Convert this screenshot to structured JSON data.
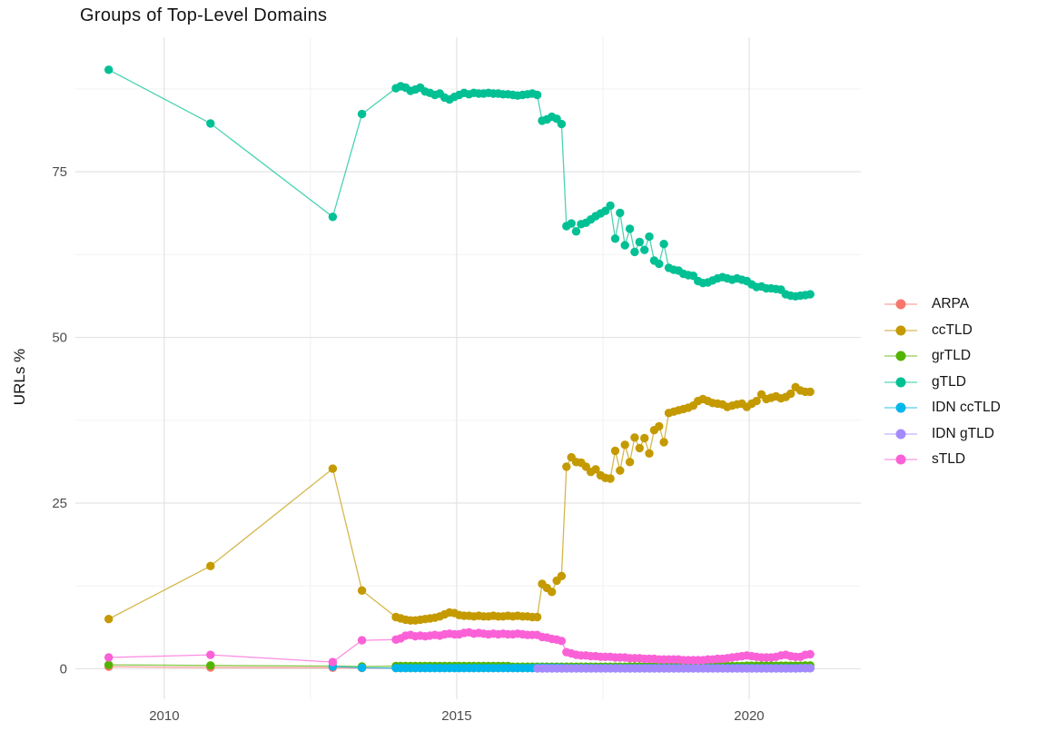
{
  "chart_data": {
    "type": "line",
    "title": "Groups of Top-Level Domains",
    "xlabel": "",
    "ylabel": "URLs %",
    "xlim": [
      2008.48,
      2021.91
    ],
    "ylim": [
      -4.6,
      95.3
    ],
    "grid": "major+minor",
    "legend_position": "right",
    "background_color": "#ffffff",
    "grid_major_color": "#e3e3e3",
    "grid_minor_color": "#f0f0f0",
    "tick_text_color": "#4d4d4d",
    "x_ticks": [
      {
        "value": 2010,
        "label": "2010"
      },
      {
        "value": 2015,
        "label": "2015"
      },
      {
        "value": 2020,
        "label": "2020"
      }
    ],
    "x_minor_ticks": [
      2012.5,
      2017.5
    ],
    "y_ticks": [
      {
        "value": 0,
        "label": "0"
      },
      {
        "value": 25,
        "label": "25"
      },
      {
        "value": 50,
        "label": "50"
      },
      {
        "value": 75,
        "label": "75"
      }
    ],
    "y_minor_ticks": [
      12.5,
      37.5,
      62.5,
      87.5
    ],
    "series": [
      {
        "name": "ARPA",
        "color": "#F8766D",
        "points": [
          [
            2009.05,
            0.3
          ],
          [
            2010.79,
            0.2
          ],
          [
            2012.88,
            0.15
          ],
          [
            2013.38,
            0.12
          ]
        ],
        "monthly": {
          "start": 2013.96,
          "step": 0.08333,
          "values": [
            0.12,
            0.12,
            0.12,
            0.12,
            0.12,
            0.12,
            0.12,
            0.12,
            0.12,
            0.12,
            0.12,
            0.12,
            0.12,
            0.12,
            0.12,
            0.12,
            0.12,
            0.12,
            0.12,
            0.12,
            0.12,
            0.12,
            0.12,
            0.12,
            0.1,
            0.1,
            0.1,
            0.1,
            0.1,
            0.1,
            0.1,
            0.1,
            0.1,
            0.1,
            0.1,
            0.1,
            0.1,
            0.1,
            0.1,
            0.1,
            0.1,
            0.1,
            0.1,
            0.1,
            0.1,
            0.1,
            0.1,
            0.1,
            0.08,
            0.08,
            0.08,
            0.08,
            0.08,
            0.08,
            0.08,
            0.08,
            0.08,
            0.08,
            0.08,
            0.08,
            0.08,
            0.08,
            0.08,
            0.08,
            0.08,
            0.08,
            0.08,
            0.08,
            0.08,
            0.08,
            0.08,
            0.08,
            0.08,
            0.08,
            0.08,
            0.08,
            0.08,
            0.08,
            0.08,
            0.08,
            0.08,
            0.08,
            0.08,
            0.08,
            0.08,
            0.08
          ]
        }
      },
      {
        "name": "ccTLD",
        "color": "#C49A00",
        "points": [
          [
            2009.05,
            7.5
          ],
          [
            2010.79,
            15.5
          ],
          [
            2012.88,
            30.2
          ],
          [
            2013.38,
            11.8
          ]
        ],
        "monthly": {
          "start": 2013.96,
          "step": 0.08333,
          "values": [
            7.8,
            7.6,
            7.4,
            7.3,
            7.3,
            7.4,
            7.5,
            7.6,
            7.7,
            7.9,
            8.2,
            8.5,
            8.4,
            8.1,
            8.0,
            8.0,
            7.9,
            8.0,
            7.9,
            7.9,
            8.0,
            7.9,
            7.9,
            8.0,
            7.9,
            8.0,
            7.9,
            7.9,
            7.8,
            7.8,
            12.8,
            12.2,
            11.6,
            13.3,
            14.0,
            30.5,
            31.9,
            31.2,
            31.1,
            30.5,
            29.7,
            30.1,
            29.2,
            28.8,
            28.7,
            32.9,
            29.9,
            33.8,
            31.2,
            34.9,
            33.3,
            34.8,
            32.5,
            36.0,
            36.6,
            34.2,
            38.6,
            38.8,
            39.0,
            39.2,
            39.4,
            39.7,
            40.4,
            40.7,
            40.4,
            40.1,
            40.0,
            39.9,
            39.5,
            39.7,
            39.9,
            40.0,
            39.5,
            40.0,
            40.4,
            41.4,
            40.7,
            40.9,
            41.1,
            40.8,
            41.0,
            41.5,
            42.5,
            42.0,
            41.8,
            41.8
          ]
        }
      },
      {
        "name": "grTLD",
        "color": "#53B400",
        "points": [
          [
            2009.05,
            0.6
          ],
          [
            2010.79,
            0.5
          ],
          [
            2012.88,
            0.4
          ],
          [
            2013.38,
            0.35
          ]
        ],
        "monthly": {
          "start": 2013.96,
          "step": 0.08333,
          "values": [
            0.4,
            0.4,
            0.4,
            0.4,
            0.4,
            0.4,
            0.4,
            0.4,
            0.4,
            0.4,
            0.4,
            0.4,
            0.4,
            0.4,
            0.4,
            0.4,
            0.4,
            0.4,
            0.4,
            0.4,
            0.4,
            0.4,
            0.4,
            0.4,
            0.3,
            0.3,
            0.3,
            0.3,
            0.3,
            0.3,
            0.3,
            0.3,
            0.3,
            0.3,
            0.3,
            0.3,
            0.3,
            0.3,
            0.3,
            0.3,
            0.3,
            0.3,
            0.3,
            0.3,
            0.3,
            0.3,
            0.3,
            0.3,
            0.35,
            0.35,
            0.35,
            0.35,
            0.35,
            0.35,
            0.35,
            0.35,
            0.35,
            0.35,
            0.35,
            0.35,
            0.4,
            0.4,
            0.4,
            0.4,
            0.4,
            0.4,
            0.4,
            0.4,
            0.4,
            0.4,
            0.4,
            0.4,
            0.45,
            0.45,
            0.45,
            0.45,
            0.45,
            0.45,
            0.45,
            0.45,
            0.45,
            0.45,
            0.45,
            0.45,
            0.5,
            0.5
          ]
        }
      },
      {
        "name": "gTLD",
        "color": "#00C094",
        "points": [
          [
            2009.05,
            90.4
          ],
          [
            2010.79,
            82.3
          ],
          [
            2012.88,
            68.2
          ],
          [
            2013.38,
            83.7
          ]
        ],
        "monthly": {
          "start": 2013.96,
          "step": 0.08333,
          "values": [
            87.6,
            87.9,
            87.7,
            87.2,
            87.4,
            87.7,
            87.1,
            86.9,
            86.6,
            86.8,
            86.2,
            85.9,
            86.3,
            86.6,
            86.9,
            86.7,
            86.9,
            86.8,
            86.8,
            86.9,
            86.8,
            86.8,
            86.7,
            86.7,
            86.6,
            86.5,
            86.6,
            86.7,
            86.8,
            86.6,
            82.7,
            82.9,
            83.3,
            83.0,
            82.2,
            66.8,
            67.2,
            66.0,
            67.1,
            67.3,
            67.8,
            68.3,
            68.7,
            69.1,
            69.9,
            64.9,
            68.8,
            63.9,
            66.4,
            62.9,
            64.4,
            63.2,
            65.2,
            61.6,
            61.1,
            64.1,
            60.5,
            60.2,
            60.1,
            59.6,
            59.4,
            59.3,
            58.5,
            58.2,
            58.3,
            58.6,
            58.9,
            59.1,
            58.9,
            58.7,
            58.9,
            58.7,
            58.5,
            58.0,
            57.6,
            57.7,
            57.4,
            57.4,
            57.3,
            57.2,
            56.5,
            56.3,
            56.2,
            56.3,
            56.4,
            56.5
          ]
        }
      },
      {
        "name": "IDN ccTLD",
        "color": "#00B6EB",
        "points": [
          [
            2012.88,
            0.35
          ],
          [
            2013.38,
            0.15
          ]
        ],
        "monthly": {
          "start": 2013.96,
          "step": 0.08333,
          "values": [
            0.1,
            0.1,
            0.1,
            0.1,
            0.1,
            0.1,
            0.1,
            0.1,
            0.1,
            0.1,
            0.1,
            0.1,
            0.1,
            0.1,
            0.1,
            0.1,
            0.1,
            0.1,
            0.1,
            0.1,
            0.1,
            0.1,
            0.1,
            0.1,
            0.1,
            0.1,
            0.1,
            0.1,
            0.1,
            0.15,
            0.15,
            0.15,
            0.15,
            0.15,
            0.15,
            0.1,
            0.1,
            0.1,
            0.1,
            0.1,
            0.1,
            0.1,
            0.1,
            0.1,
            0.1,
            0.1,
            0.1,
            0.1,
            0.1,
            0.1,
            0.1,
            0.1,
            0.1,
            0.1,
            0.1,
            0.1,
            0.1,
            0.1,
            0.1,
            0.1,
            0.1,
            0.1,
            0.1,
            0.1,
            0.1,
            0.1,
            0.1,
            0.1,
            0.1,
            0.1,
            0.1,
            0.1,
            0.1,
            0.1,
            0.1,
            0.1,
            0.1,
            0.1,
            0.1,
            0.1,
            0.1,
            0.1,
            0.1,
            0.1,
            0.1,
            0.1
          ]
        }
      },
      {
        "name": "IDN gTLD",
        "color": "#A58AFF",
        "points": [],
        "monthly": {
          "start": 2016.38,
          "step": 0.08333,
          "values": [
            0.05,
            0.05,
            0.05,
            0.05,
            0.05,
            0.05,
            0.05,
            0.05,
            0.05,
            0.05,
            0.05,
            0.05,
            0.05,
            0.05,
            0.05,
            0.05,
            0.05,
            0.05,
            0.05,
            0.05,
            0.05,
            0.05,
            0.05,
            0.05,
            0.05,
            0.05,
            0.05,
            0.05,
            0.05,
            0.05,
            0.05,
            0.05,
            0.05,
            0.05,
            0.05,
            0.05,
            0.05,
            0.05,
            0.05,
            0.05,
            0.05,
            0.05,
            0.05,
            0.05,
            0.05,
            0.05,
            0.05,
            0.05,
            0.05,
            0.05,
            0.05,
            0.05,
            0.05,
            0.05,
            0.08,
            0.08,
            0.08
          ]
        }
      },
      {
        "name": "sTLD",
        "color": "#FB61D7",
        "points": [
          [
            2009.05,
            1.7
          ],
          [
            2010.79,
            2.1
          ],
          [
            2012.88,
            1.0
          ],
          [
            2013.38,
            4.3
          ]
        ],
        "monthly": {
          "start": 2013.96,
          "step": 0.08333,
          "values": [
            4.4,
            4.6,
            5.0,
            5.1,
            4.9,
            5.0,
            4.9,
            5.0,
            5.1,
            5.0,
            5.2,
            5.3,
            5.2,
            5.2,
            5.4,
            5.5,
            5.3,
            5.4,
            5.3,
            5.2,
            5.3,
            5.2,
            5.3,
            5.2,
            5.2,
            5.3,
            5.2,
            5.1,
            5.1,
            5.1,
            4.8,
            4.7,
            4.5,
            4.4,
            4.2,
            2.5,
            2.3,
            2.1,
            2.0,
            2.0,
            1.9,
            1.9,
            1.8,
            1.8,
            1.8,
            1.7,
            1.7,
            1.7,
            1.6,
            1.6,
            1.6,
            1.5,
            1.5,
            1.5,
            1.4,
            1.4,
            1.4,
            1.4,
            1.4,
            1.3,
            1.3,
            1.3,
            1.3,
            1.3,
            1.4,
            1.4,
            1.5,
            1.5,
            1.6,
            1.7,
            1.8,
            1.9,
            2.0,
            1.9,
            1.8,
            1.7,
            1.7,
            1.7,
            1.8,
            2.0,
            2.1,
            1.9,
            1.8,
            1.8,
            2.1,
            2.2
          ]
        }
      }
    ]
  }
}
